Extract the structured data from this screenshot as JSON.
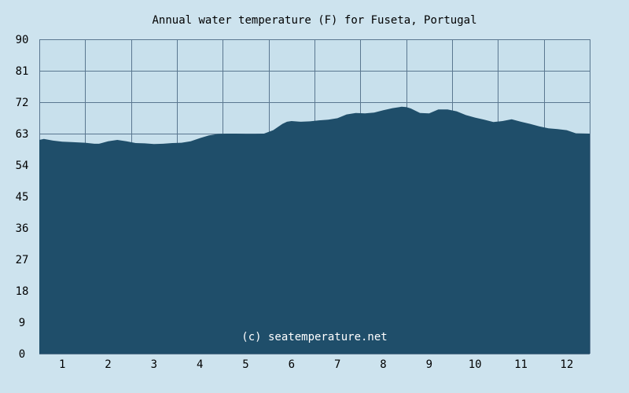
{
  "chart_data": {
    "type": "area",
    "title": "Annual water temperature (F) for Fuseta, Portugal",
    "xlabel": "",
    "ylabel": "",
    "x_ticks": [
      "1",
      "2",
      "3",
      "4",
      "5",
      "6",
      "7",
      "8",
      "9",
      "10",
      "11",
      "12"
    ],
    "y_ticks": [
      0,
      9,
      18,
      27,
      36,
      45,
      54,
      63,
      72,
      81,
      90
    ],
    "ylim": [
      0,
      90
    ],
    "xlim": [
      0.5,
      12.5
    ],
    "grid": true,
    "x": [
      0.5,
      0.6,
      0.8,
      1.0,
      1.2,
      1.5,
      1.7,
      1.8,
      2.0,
      2.2,
      2.4,
      2.6,
      2.8,
      3.0,
      3.2,
      3.4,
      3.6,
      3.8,
      4.0,
      4.2,
      4.4,
      4.6,
      4.8,
      5.0,
      5.2,
      5.4,
      5.6,
      5.8,
      5.9,
      6.0,
      6.2,
      6.4,
      6.6,
      6.8,
      7.0,
      7.2,
      7.4,
      7.6,
      7.8,
      8.0,
      8.2,
      8.4,
      8.5,
      8.6,
      8.8,
      9.0,
      9.2,
      9.4,
      9.6,
      9.8,
      10.0,
      10.2,
      10.4,
      10.6,
      10.8,
      11.0,
      11.2,
      11.4,
      11.6,
      11.8,
      12.0,
      12.2,
      12.5
    ],
    "values": [
      61.2,
      61.5,
      61.0,
      60.7,
      60.6,
      60.4,
      60.1,
      60.1,
      60.8,
      61.2,
      60.8,
      60.3,
      60.2,
      60.0,
      60.1,
      60.3,
      60.4,
      60.8,
      61.7,
      62.5,
      62.9,
      63.0,
      63.0,
      62.9,
      62.9,
      63.0,
      64.0,
      65.8,
      66.4,
      66.6,
      66.4,
      66.5,
      66.8,
      67.0,
      67.4,
      68.5,
      68.9,
      68.8,
      69.0,
      69.7,
      70.3,
      70.7,
      70.6,
      70.2,
      68.9,
      68.8,
      69.9,
      69.9,
      69.4,
      68.3,
      67.6,
      67.0,
      66.3,
      66.6,
      67.1,
      66.4,
      65.8,
      65.1,
      64.5,
      64.3,
      64.0,
      63.1,
      63.0
    ],
    "watermark": "(c) seatemperature.net",
    "colors": {
      "background": "#cde3ee",
      "plot_background": "#c8e0ec",
      "area_fill": "#1f4e6a",
      "grid": "#5a7790",
      "watermark": "#ffffff"
    }
  }
}
